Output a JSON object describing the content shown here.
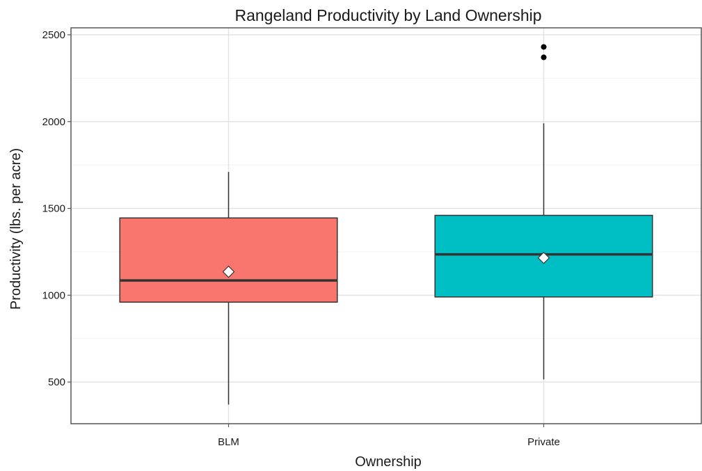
{
  "chart_data": {
    "type": "boxplot",
    "title": "Rangeland Productivity by Land Ownership",
    "xlabel": "Ownership",
    "ylabel": "Productivity (lbs. per acre)",
    "ylim": [
      260,
      2540
    ],
    "yticks": [
      500,
      1000,
      1500,
      2000,
      2500
    ],
    "grid": true,
    "categories": [
      "BLM",
      "Private"
    ],
    "boxes": [
      {
        "category": "BLM",
        "whisker_low": 370,
        "q1": 960,
        "median": 1085,
        "q3": 1445,
        "whisker_high": 1710,
        "mean": 1135,
        "outliers": [],
        "color": "#F8766D"
      },
      {
        "category": "Private",
        "whisker_low": 515,
        "q1": 990,
        "median": 1235,
        "q3": 1460,
        "whisker_high": 1990,
        "mean": 1215,
        "outliers": [
          2370,
          2430
        ],
        "color": "#00BFC4"
      }
    ]
  }
}
